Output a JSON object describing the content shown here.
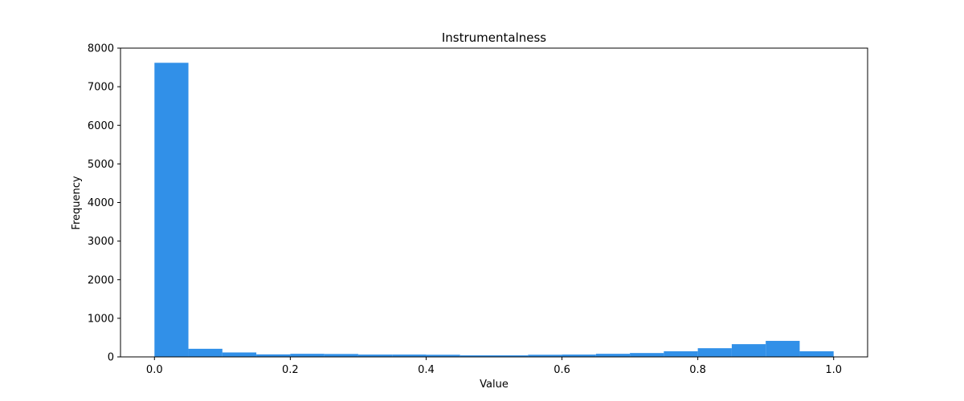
{
  "chart_data": {
    "type": "bar",
    "title": "Instrumentalness",
    "xlabel": "Value",
    "ylabel": "Frequency",
    "xlim": [
      -0.05,
      1.05
    ],
    "ylim": [
      0,
      8000
    ],
    "grid": false,
    "legend": "none",
    "bar_color": "#3190E8",
    "x_ticks": [
      {
        "value": 0.0,
        "label": "0.0"
      },
      {
        "value": 0.2,
        "label": "0.2"
      },
      {
        "value": 0.4,
        "label": "0.4"
      },
      {
        "value": 0.6,
        "label": "0.6"
      },
      {
        "value": 0.8,
        "label": "0.8"
      },
      {
        "value": 1.0,
        "label": "1.0"
      }
    ],
    "y_ticks": [
      {
        "value": 0,
        "label": "0"
      },
      {
        "value": 1000,
        "label": "1000"
      },
      {
        "value": 2000,
        "label": "2000"
      },
      {
        "value": 3000,
        "label": "3000"
      },
      {
        "value": 4000,
        "label": "4000"
      },
      {
        "value": 5000,
        "label": "5000"
      },
      {
        "value": 6000,
        "label": "6000"
      },
      {
        "value": 7000,
        "label": "7000"
      },
      {
        "value": 8000,
        "label": "8000"
      }
    ],
    "bins": [
      {
        "x0": 0.0,
        "x1": 0.05,
        "value": 7620
      },
      {
        "x0": 0.05,
        "x1": 0.1,
        "value": 210
      },
      {
        "x0": 0.1,
        "x1": 0.15,
        "value": 115
      },
      {
        "x0": 0.15,
        "x1": 0.2,
        "value": 65
      },
      {
        "x0": 0.2,
        "x1": 0.25,
        "value": 80
      },
      {
        "x0": 0.25,
        "x1": 0.3,
        "value": 75
      },
      {
        "x0": 0.3,
        "x1": 0.35,
        "value": 60
      },
      {
        "x0": 0.35,
        "x1": 0.4,
        "value": 60
      },
      {
        "x0": 0.4,
        "x1": 0.45,
        "value": 55
      },
      {
        "x0": 0.45,
        "x1": 0.5,
        "value": 40
      },
      {
        "x0": 0.5,
        "x1": 0.55,
        "value": 40
      },
      {
        "x0": 0.55,
        "x1": 0.6,
        "value": 55
      },
      {
        "x0": 0.6,
        "x1": 0.65,
        "value": 60
      },
      {
        "x0": 0.65,
        "x1": 0.7,
        "value": 80
      },
      {
        "x0": 0.7,
        "x1": 0.75,
        "value": 100
      },
      {
        "x0": 0.75,
        "x1": 0.8,
        "value": 145
      },
      {
        "x0": 0.8,
        "x1": 0.85,
        "value": 225
      },
      {
        "x0": 0.85,
        "x1": 0.9,
        "value": 330
      },
      {
        "x0": 0.9,
        "x1": 0.95,
        "value": 415
      },
      {
        "x0": 0.95,
        "x1": 1.0,
        "value": 145
      }
    ]
  }
}
